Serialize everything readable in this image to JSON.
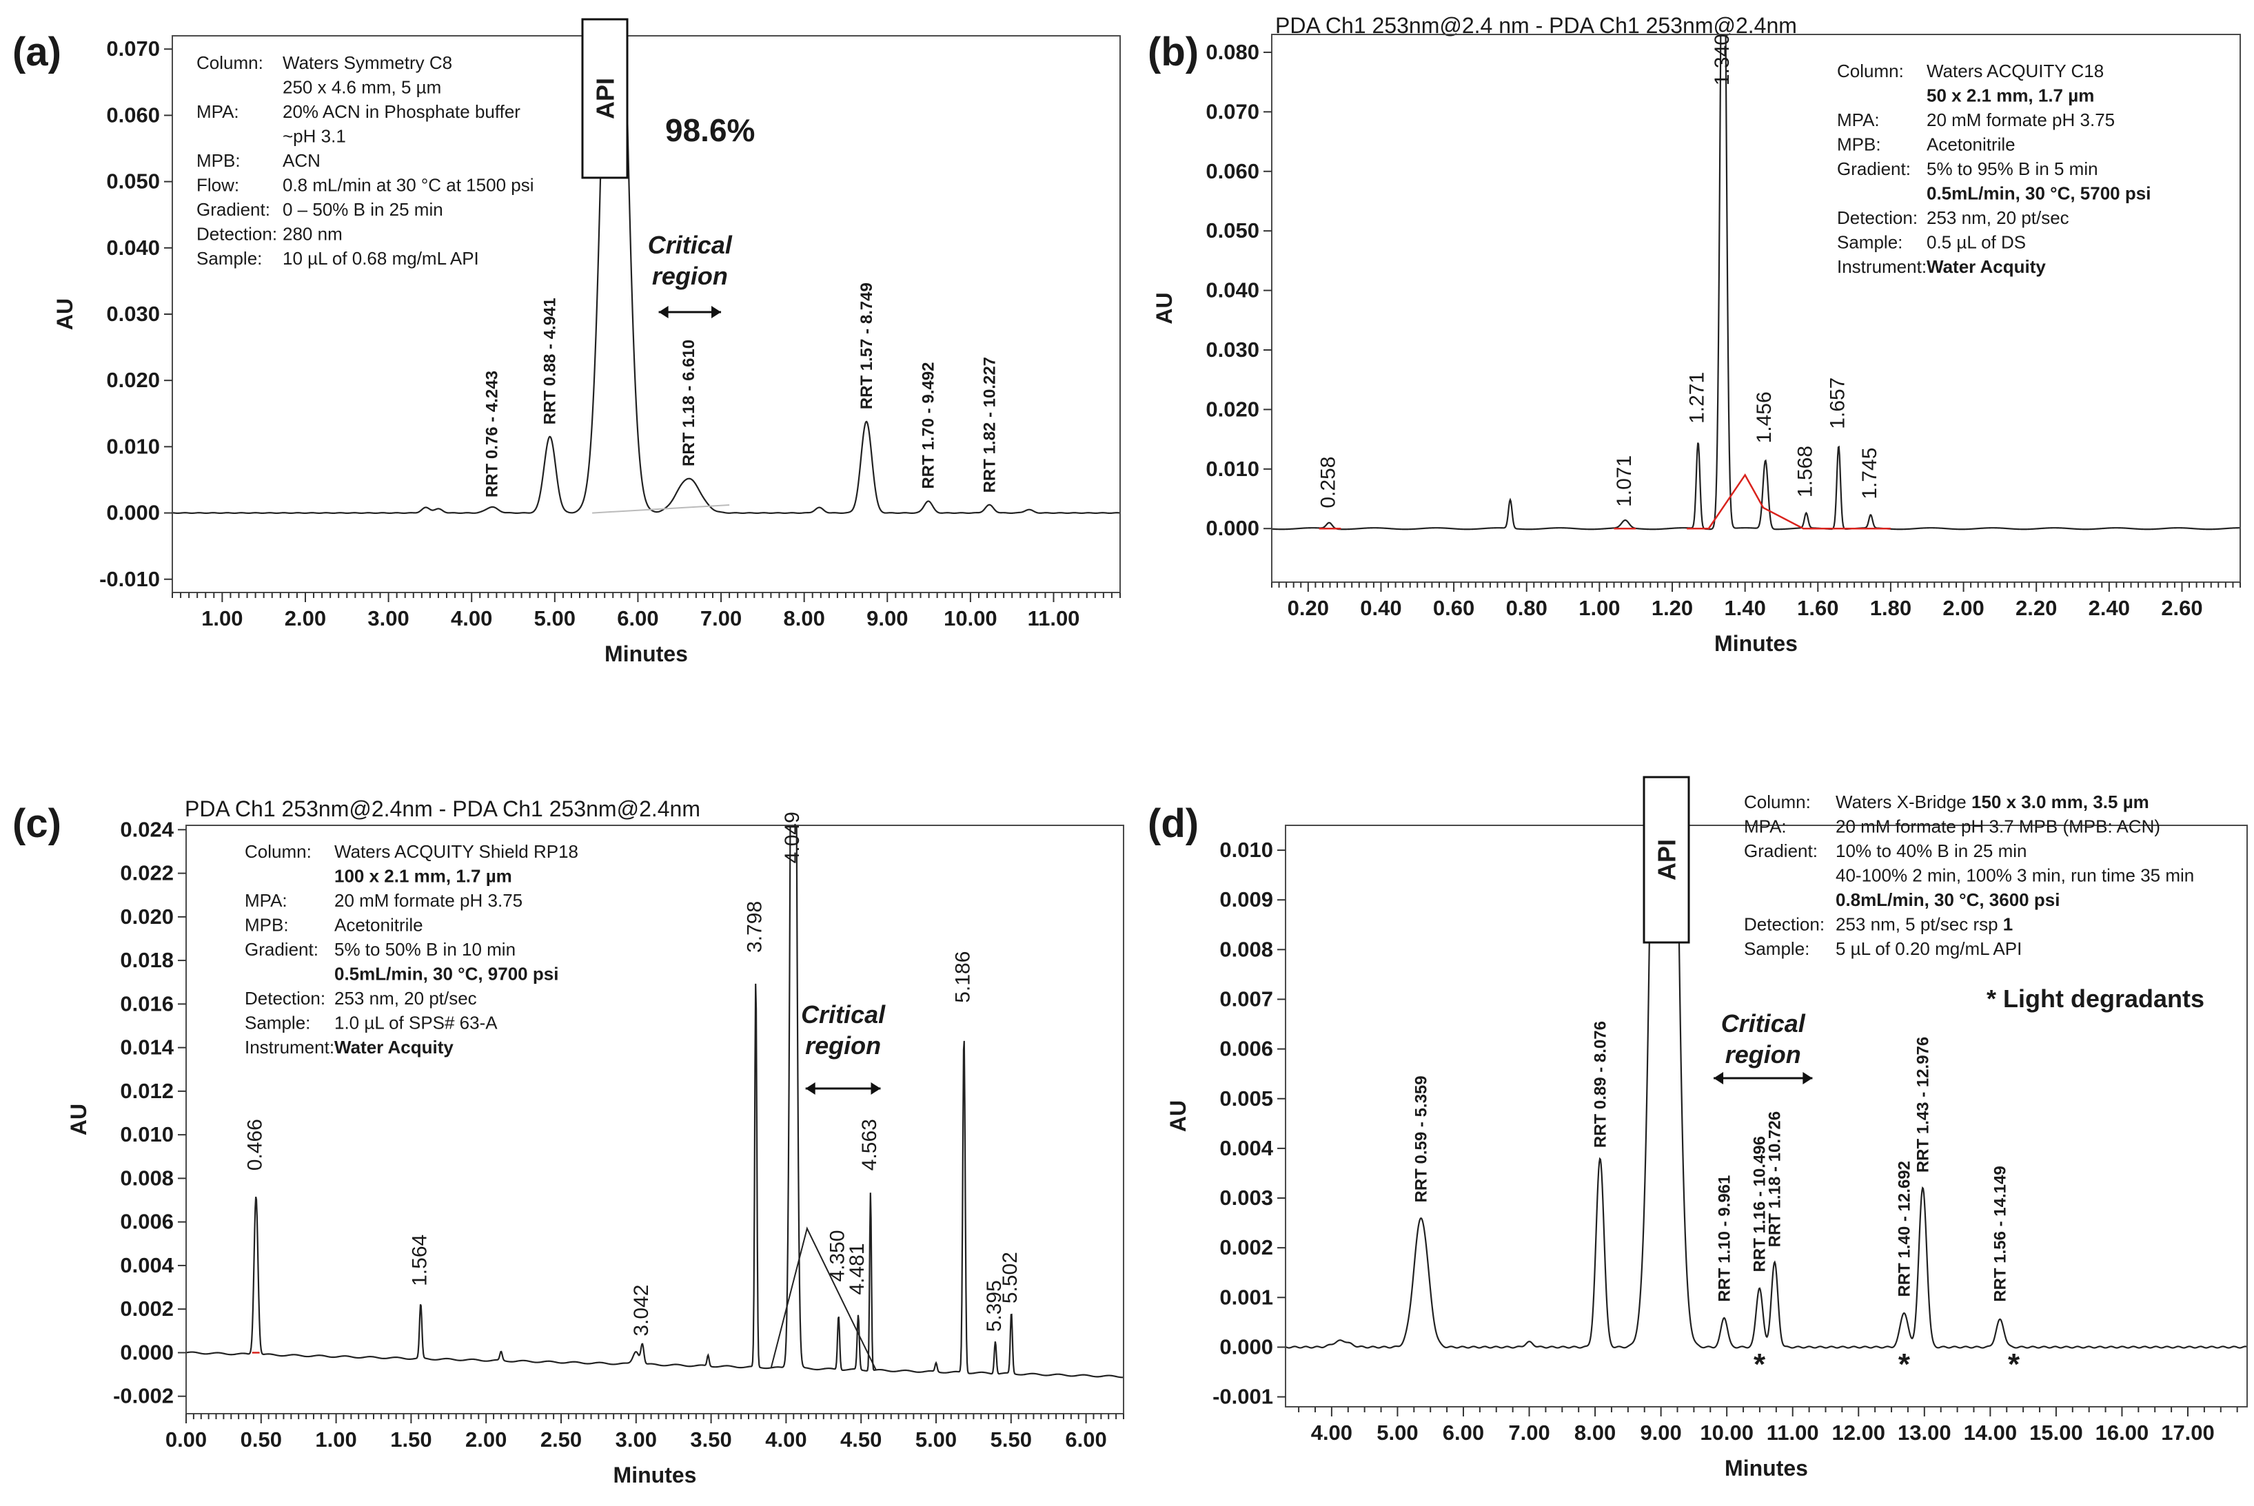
{
  "figure": {
    "panels": [
      "(a)",
      "(b)",
      "(c)",
      "(d)"
    ]
  },
  "chart_data": [
    {
      "type": "line",
      "panel_label": "(a)",
      "title": "",
      "xlabel": "Minutes",
      "ylabel": "AU",
      "xlim": [
        0.4,
        11.8
      ],
      "ylim": [
        -0.012,
        0.072
      ],
      "x_ticks": [
        "1.00",
        "2.00",
        "3.00",
        "4.00",
        "5.00",
        "6.00",
        "7.00",
        "8.00",
        "9.00",
        "10.00",
        "11.00"
      ],
      "y_ticks": [
        "-0.010",
        "0.000",
        "0.010",
        "0.020",
        "0.030",
        "0.040",
        "0.050",
        "0.060",
        "0.070"
      ],
      "line_color": "#222222",
      "baseline": 0.0,
      "peaks": [
        {
          "t": 3.45,
          "h": 0.0008,
          "w": 0.05
        },
        {
          "t": 3.6,
          "h": 0.0006,
          "w": 0.05
        },
        {
          "t": 4.243,
          "h": 0.0009,
          "w": 0.07
        },
        {
          "t": 4.941,
          "h": 0.0115,
          "w": 0.07
        },
        {
          "t": 5.72,
          "h": 0.12,
          "w": 0.13
        },
        {
          "t": 6.61,
          "h": 0.0052,
          "w": 0.14
        },
        {
          "t": 8.18,
          "h": 0.0008,
          "w": 0.05
        },
        {
          "t": 8.749,
          "h": 0.0138,
          "w": 0.065
        },
        {
          "t": 9.492,
          "h": 0.0018,
          "w": 0.05
        },
        {
          "t": 10.227,
          "h": 0.0012,
          "w": 0.05
        },
        {
          "t": 10.7,
          "h": 0.0005,
          "w": 0.05
        }
      ],
      "peak_labels": [
        {
          "text": "RRT 0.76 - 4.243",
          "x": 4.243,
          "y": 0.0015
        },
        {
          "text": "RRT 0.88 - 4.941",
          "x": 4.941,
          "y": 0.0125
        },
        {
          "text": "RRT 1.18 - 6.610",
          "x": 6.61,
          "y": 0.0062
        },
        {
          "text": "RRT 1.57 - 8.749",
          "x": 8.749,
          "y": 0.0148
        },
        {
          "text": "RRT 1.70 - 9.492",
          "x": 9.492,
          "y": 0.0028
        },
        {
          "text": "RRT 1.82 - 10.227",
          "x": 10.227,
          "y": 0.0022
        }
      ],
      "api_label": "API",
      "api_percent": "98.6%",
      "critical_region": {
        "line1": "Critical",
        "line2": "region",
        "x_start": 6.25,
        "x_end": 7.0
      },
      "conditions": [
        [
          "Column:",
          "Waters Symmetry C8"
        ],
        [
          "",
          "250 x 4.6 mm, 5 µm"
        ],
        [
          "MPA:",
          "20% ACN in Phosphate buffer"
        ],
        [
          "",
          "~pH 3.1"
        ],
        [
          "MPB:",
          "ACN"
        ],
        [
          "Flow:",
          "0.8 mL/min at 30 °C at 1500 psi"
        ],
        [
          "Gradient:",
          "0 – 50% B in 25 min"
        ],
        [
          "Detection:",
          "280 nm"
        ],
        [
          "Sample:",
          "10 µL of 0.68 mg/mL API"
        ]
      ]
    },
    {
      "type": "line",
      "panel_label": "(b)",
      "title": "PDA Ch1 253nm@2.4 nm - PDA Ch1 253nm@2.4nm",
      "xlabel": "Minutes",
      "ylabel": "AU",
      "xlim": [
        0.1,
        2.76
      ],
      "ylim": [
        -0.009,
        0.083
      ],
      "x_ticks": [
        "0.20",
        "0.40",
        "0.60",
        "0.80",
        "1.00",
        "1.20",
        "1.40",
        "1.60",
        "1.80",
        "2.00",
        "2.20",
        "2.40",
        "2.60"
      ],
      "y_ticks": [
        "0.000",
        "0.010",
        "0.020",
        "0.030",
        "0.040",
        "0.050",
        "0.060",
        "0.070",
        "0.080"
      ],
      "line_color": "#222222",
      "baseline_color": "#d9231d",
      "baseline": 0.0,
      "peaks": [
        {
          "t": 0.258,
          "h": 0.001,
          "w": 0.008
        },
        {
          "t": 0.755,
          "h": 0.0048,
          "w": 0.005
        },
        {
          "t": 1.071,
          "h": 0.0013,
          "w": 0.01
        },
        {
          "t": 1.271,
          "h": 0.0145,
          "w": 0.005
        },
        {
          "t": 1.34,
          "h": 0.12,
          "w": 0.008
        },
        {
          "t": 1.456,
          "h": 0.0115,
          "w": 0.007
        },
        {
          "t": 1.568,
          "h": 0.0025,
          "w": 0.005
        },
        {
          "t": 1.657,
          "h": 0.014,
          "w": 0.005
        },
        {
          "t": 1.745,
          "h": 0.0022,
          "w": 0.005
        }
      ],
      "peak_labels": [
        {
          "text": "0.258",
          "x": 0.258,
          "y": 0.0025
        },
        {
          "text": "1.071",
          "x": 1.071,
          "y": 0.0027
        },
        {
          "text": "1.271",
          "x": 1.271,
          "y": 0.0167
        },
        {
          "text": "1.340",
          "x": 1.34,
          "y": 0.0735
        },
        {
          "text": "1.456",
          "x": 1.456,
          "y": 0.0134
        },
        {
          "text": "1.568",
          "x": 1.568,
          "y": 0.0043
        },
        {
          "text": "1.657",
          "x": 1.657,
          "y": 0.0158
        },
        {
          "text": "1.745",
          "x": 1.745,
          "y": 0.004
        }
      ],
      "conditions": [
        [
          "Column:",
          "Waters ACQUITY C18",
          false
        ],
        [
          "",
          "50 x 2.1 mm, 1.7 µm",
          true
        ],
        [
          "MPA:",
          "20 mM formate pH 3.75",
          false
        ],
        [
          "MPB:",
          "Acetonitrile",
          false
        ],
        [
          "Gradient:",
          "5% to 95% B in 5 min",
          false
        ],
        [
          "",
          "0.5mL/min, 30 °C, 5700 psi",
          true
        ],
        [
          "Detection:",
          "253 nm, 20 pt/sec",
          false
        ],
        [
          "Sample:",
          "0.5 µL of DS",
          false
        ],
        [
          "Instrument:",
          "Water Acquity",
          true
        ]
      ]
    },
    {
      "type": "line",
      "panel_label": "(c)",
      "title": "PDA Ch1 253nm@2.4nm - PDA Ch1 253nm@2.4nm",
      "xlabel": "Minutes",
      "ylabel": "AU",
      "xlim": [
        0.0,
        6.25
      ],
      "ylim": [
        -0.0028,
        0.0242
      ],
      "x_ticks": [
        "0.00",
        "0.50",
        "1.00",
        "1.50",
        "2.00",
        "2.50",
        "3.00",
        "3.50",
        "4.00",
        "4.50",
        "5.00",
        "5.50",
        "6.00"
      ],
      "y_ticks": [
        "-0.002",
        "0.000",
        "0.002",
        "0.004",
        "0.006",
        "0.008",
        "0.010",
        "0.012",
        "0.014",
        "0.016",
        "0.018",
        "0.020",
        "0.022",
        "0.024"
      ],
      "line_color": "#222222",
      "accent_color": "#d9231d",
      "baseline_start": 0.0,
      "baseline_end": -0.0011,
      "peaks": [
        {
          "t": 0.466,
          "h": 0.0073,
          "w": 0.013
        },
        {
          "t": 1.564,
          "h": 0.0025,
          "w": 0.008
        },
        {
          "t": 2.1,
          "h": 0.0004,
          "w": 0.008
        },
        {
          "t": 3.0,
          "h": 0.0006,
          "w": 0.02
        },
        {
          "t": 3.042,
          "h": 0.0009,
          "w": 0.01
        },
        {
          "t": 3.48,
          "h": 0.0005,
          "w": 0.007
        },
        {
          "t": 3.798,
          "h": 0.0178,
          "w": 0.007
        },
        {
          "t": 4.049,
          "h": 0.05,
          "w": 0.018
        },
        {
          "t": 4.35,
          "h": 0.0025,
          "w": 0.007
        },
        {
          "t": 4.481,
          "h": 0.0025,
          "w": 0.007
        },
        {
          "t": 4.563,
          "h": 0.0082,
          "w": 0.006
        },
        {
          "t": 5.0,
          "h": 0.0004,
          "w": 0.007
        },
        {
          "t": 5.186,
          "h": 0.0155,
          "w": 0.008
        },
        {
          "t": 5.395,
          "h": 0.0015,
          "w": 0.007
        },
        {
          "t": 5.502,
          "h": 0.0028,
          "w": 0.007
        }
      ],
      "peak_labels": [
        {
          "text": "0.466",
          "x": 0.466,
          "y": 0.0081
        },
        {
          "text": "1.564",
          "x": 1.564,
          "y": 0.0028
        },
        {
          "text": "3.042",
          "x": 3.042,
          "y": 0.0005
        },
        {
          "text": "3.798",
          "x": 3.798,
          "y": 0.0181
        },
        {
          "text": "4.049",
          "x": 4.049,
          "y": 0.0222
        },
        {
          "text": "4.350",
          "x": 4.35,
          "y": 0.003
        },
        {
          "text": "4.481",
          "x": 4.481,
          "y": 0.0024
        },
        {
          "text": "4.563",
          "x": 4.563,
          "y": 0.0081
        },
        {
          "text": "5.186",
          "x": 5.186,
          "y": 0.0158
        },
        {
          "text": "5.395",
          "x": 5.395,
          "y": 0.0007
        },
        {
          "text": "5.502",
          "x": 5.502,
          "y": 0.002
        }
      ],
      "critical_region": {
        "line1": "Critical",
        "line2": "region",
        "x_start": 4.13,
        "x_end": 4.63
      },
      "conditions": [
        [
          "Column:",
          "Waters ACQUITY Shield RP18",
          false
        ],
        [
          "",
          "100 x 2.1 mm, 1.7 µm",
          true
        ],
        [
          "MPA:",
          "20 mM formate pH 3.75",
          false
        ],
        [
          "MPB:",
          "Acetonitrile",
          false
        ],
        [
          "Gradient:",
          "5% to 50% B in 10 min",
          false
        ],
        [
          "",
          "0.5mL/min, 30 °C, 9700 psi",
          true
        ],
        [
          "Detection:",
          "253 nm, 20 pt/sec",
          false
        ],
        [
          "Sample:",
          "1.0 µL of SPS# 63-A",
          false
        ],
        [
          "Instrument:",
          "Water Acquity",
          true
        ]
      ]
    },
    {
      "type": "line",
      "panel_label": "(d)",
      "title": "",
      "xlabel": "Minutes",
      "ylabel": "AU",
      "xlim": [
        3.3,
        17.9
      ],
      "ylim": [
        -0.0012,
        0.0105
      ],
      "x_ticks": [
        "4.00",
        "5.00",
        "6.00",
        "7.00",
        "8.00",
        "9.00",
        "10.00",
        "11.00",
        "12.00",
        "13.00",
        "14.00",
        "15.00",
        "16.00",
        "17.00"
      ],
      "y_ticks": [
        "-0.001",
        "0.000",
        "0.001",
        "0.002",
        "0.003",
        "0.004",
        "0.005",
        "0.006",
        "0.007",
        "0.008",
        "0.009",
        "0.010"
      ],
      "line_color": "#222222",
      "baseline": 0.0,
      "peaks": [
        {
          "t": 4.15,
          "h": 0.00013,
          "w": 0.12
        },
        {
          "t": 5.359,
          "h": 0.0026,
          "w": 0.11
        },
        {
          "t": 7.0,
          "h": 0.0001,
          "w": 0.06
        },
        {
          "t": 8.076,
          "h": 0.0038,
          "w": 0.06
        },
        {
          "t": 9.05,
          "h": 0.03,
          "w": 0.14
        },
        {
          "t": 9.961,
          "h": 0.0006,
          "w": 0.05
        },
        {
          "t": 10.496,
          "h": 0.0012,
          "w": 0.05
        },
        {
          "t": 10.726,
          "h": 0.0017,
          "w": 0.05
        },
        {
          "t": 12.692,
          "h": 0.0007,
          "w": 0.06
        },
        {
          "t": 12.976,
          "h": 0.0032,
          "w": 0.06
        },
        {
          "t": 14.149,
          "h": 0.00055,
          "w": 0.06
        }
      ],
      "peak_labels": [
        {
          "text": "RRT 0.59 - 5.359",
          "x": 5.359,
          "y": 0.0028
        },
        {
          "text": "RRT 0.89 - 8.076",
          "x": 8.076,
          "y": 0.0039
        },
        {
          "text": "RRT 1.10 - 9.961",
          "x": 9.961,
          "y": 0.0008
        },
        {
          "text": "RRT 1.16 - 10.496",
          "x": 10.496,
          "y": 0.0014
        },
        {
          "text": "RRT 1.18 - 10.726",
          "x": 10.726,
          "y": 0.0019
        },
        {
          "text": "RRT 1.40 - 12.692",
          "x": 12.692,
          "y": 0.0009
        },
        {
          "text": "RRT 1.43 - 12.976",
          "x": 12.976,
          "y": 0.0034
        },
        {
          "text": "RRT 1.56 - 14.149",
          "x": 14.149,
          "y": 0.0008
        }
      ],
      "api_label": "API",
      "degradant_markers": [
        10.496,
        12.692,
        14.149
      ],
      "degradant_symbol": "*",
      "legend_note": "* Light degradants",
      "critical_region": {
        "line1": "Critical",
        "line2": "region",
        "x_start": 9.8,
        "x_end": 11.3
      },
      "conditions": [
        [
          "Column:",
          "Waters X-Bridge ",
          "150 x 3.0 mm, 3.5 µm"
        ],
        [
          "MPA:",
          "20 mM formate pH 3.7 MPB (MPB: ACN)",
          ""
        ],
        [
          "Gradient:",
          "10% to 40% B in 25 min",
          ""
        ],
        [
          "",
          "40-100% 2 min, 100% 3 min, run time 35 min",
          ""
        ],
        [
          "",
          "",
          "0.8mL/min, 30 °C, 3600 psi"
        ],
        [
          "Detection:",
          "253 nm, 5 pt/sec rsp ",
          "1"
        ],
        [
          "Sample:",
          "5 µL of 0.20 mg/mL API",
          ""
        ]
      ]
    }
  ]
}
